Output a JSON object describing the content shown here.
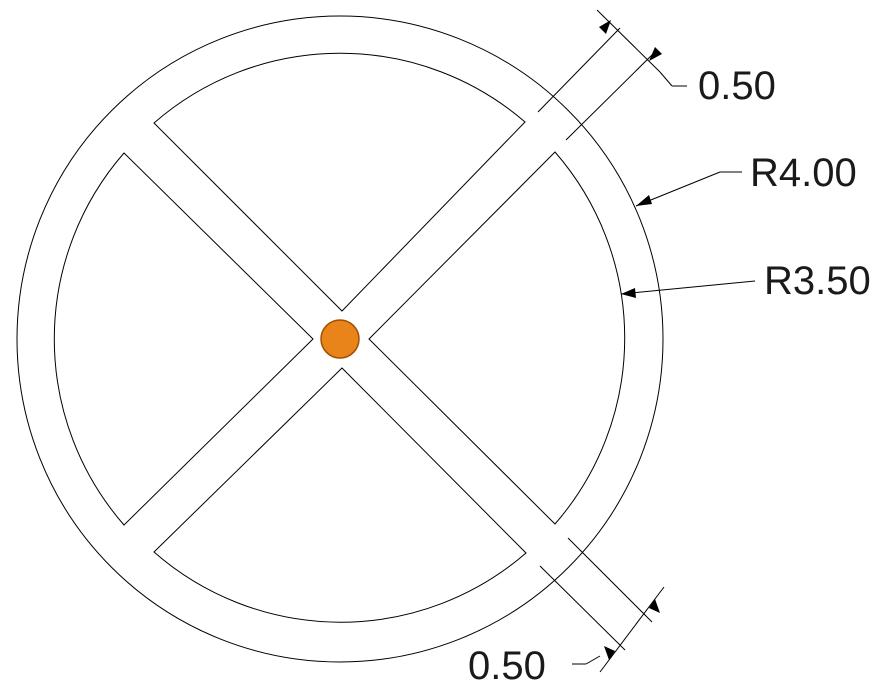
{
  "drawing": {
    "dimensions": {
      "slot_width_top": "0.50",
      "outer_radius": "R4.00",
      "inner_radius": "R3.50",
      "slot_width_bottom": "0.50"
    },
    "colors": {
      "linework": "#000000",
      "center_marker_fill": "#e8841a",
      "center_marker_stroke": "#a24f00"
    }
  }
}
